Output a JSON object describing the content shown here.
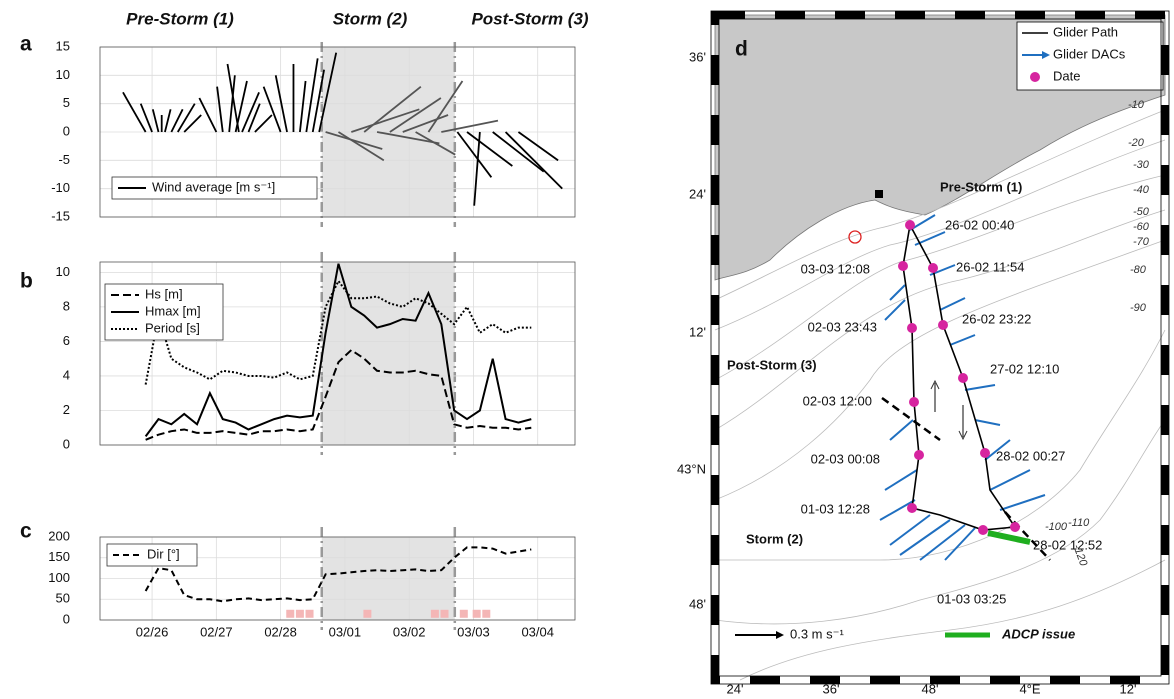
{
  "chart_data": [
    {
      "type": "stick",
      "panel": "a",
      "phase_titles": [
        "Pre-Storm (1)",
        "Storm (2)",
        "Post-Storm (3)"
      ],
      "x": [
        25.9,
        26.0,
        26.1,
        26.15,
        26.2,
        26.3,
        26.4,
        26.5,
        27.0,
        27.1,
        27.2,
        27.3,
        27.35,
        27.4,
        27.5,
        27.6,
        28.0,
        28.1,
        28.2,
        28.3,
        28.4,
        28.5,
        28.6,
        28.7,
        28.9,
        29.1,
        29.3,
        29.5,
        29.7,
        29.9,
        30.1,
        30.3,
        30.5,
        30.75,
        30.9,
        31.1,
        31.3,
        31.5,
        31.7
      ],
      "series": [
        {
          "name": "Wind average [m s⁻¹]",
          "color": "#000000",
          "u": [
            -4,
            -2,
            -1,
            0,
            1,
            2,
            3,
            3,
            -3,
            -1,
            1,
            2,
            -2,
            3,
            2,
            3,
            -3,
            -2,
            0,
            1,
            2,
            2,
            3,
            10,
            8,
            12,
            10,
            11,
            9,
            8,
            7,
            6,
            10,
            6,
            8,
            -1,
            9,
            10,
            7
          ],
          "v": [
            7,
            5,
            4,
            3,
            4,
            4,
            5,
            3,
            6,
            8,
            10,
            9,
            12,
            7,
            5,
            3,
            8,
            10,
            12,
            9,
            13,
            11,
            14,
            -3,
            -5,
            4,
            8,
            -2,
            6,
            3,
            -4,
            9,
            2,
            -8,
            -6,
            -13,
            -7,
            -10,
            -5
          ]
        }
      ],
      "storm_color": "#555555",
      "shade": [
        28.64,
        30.71
      ],
      "xlim": [
        25.19,
        32.58
      ],
      "xticks": [
        26,
        27,
        28,
        29,
        30,
        31,
        32
      ],
      "ylim": [
        -15,
        15
      ],
      "yticks": [
        -15,
        -10,
        -5,
        0,
        5,
        10,
        15
      ],
      "grid": true,
      "legend": "lower left"
    },
    {
      "type": "line",
      "panel": "b",
      "x": [
        25.9,
        26.1,
        26.3,
        26.5,
        26.7,
        26.9,
        27.1,
        27.3,
        27.5,
        27.7,
        27.9,
        28.1,
        28.3,
        28.5,
        28.7,
        28.9,
        29.1,
        29.3,
        29.5,
        29.7,
        29.9,
        30.1,
        30.3,
        30.5,
        30.7,
        30.9,
        31.1,
        31.3,
        31.5,
        31.7,
        31.9
      ],
      "series": [
        {
          "name": "Hs [m]",
          "color": "#000000",
          "dash": "8 4",
          "values": [
            0.3,
            0.6,
            0.8,
            0.9,
            0.7,
            0.7,
            0.8,
            0.7,
            0.6,
            0.8,
            0.8,
            0.9,
            0.8,
            0.9,
            2.8,
            4.8,
            5.5,
            5.0,
            4.3,
            4.2,
            4.2,
            4.3,
            4.1,
            4.0,
            1.2,
            1.0,
            1.1,
            1.0,
            1.0,
            0.9,
            1.0
          ]
        },
        {
          "name": "Hmax [m]",
          "color": "#000000",
          "dash": "none",
          "values": [
            0.5,
            1.5,
            1.2,
            1.8,
            1.2,
            3.0,
            1.5,
            1.3,
            0.9,
            1.2,
            1.5,
            1.7,
            1.6,
            1.7,
            6.5,
            10.5,
            8.0,
            7.5,
            6.8,
            7.0,
            7.3,
            7.2,
            8.8,
            7.0,
            2.0,
            1.5,
            2.0,
            5.0,
            1.5,
            1.3,
            1.5
          ]
        },
        {
          "name": "Period [s]",
          "color": "#000000",
          "dash": "2 2",
          "values": [
            3.5,
            7.5,
            5.0,
            4.5,
            4.2,
            3.8,
            4.3,
            4.2,
            4.0,
            4.0,
            3.9,
            4.2,
            3.8,
            4.0,
            8.0,
            9.5,
            8.5,
            8.5,
            8.6,
            8.2,
            8.0,
            8.5,
            8.2,
            7.6,
            7.0,
            8.0,
            6.5,
            7.0,
            6.5,
            6.8,
            6.8
          ]
        }
      ],
      "shade": [
        28.64,
        30.71
      ],
      "xlim": [
        25.19,
        32.58
      ],
      "xticks": [
        26,
        27,
        28,
        29,
        30,
        31,
        32
      ],
      "ylim": [
        0,
        10.6
      ],
      "yticks": [
        0,
        2,
        4,
        6,
        8,
        10
      ],
      "grid": true,
      "legend": "upper left"
    },
    {
      "type": "line",
      "panel": "c",
      "x": [
        25.9,
        26.1,
        26.3,
        26.5,
        26.7,
        26.9,
        27.1,
        27.3,
        27.5,
        27.7,
        27.9,
        28.1,
        28.3,
        28.5,
        28.7,
        28.9,
        29.1,
        29.3,
        29.5,
        29.7,
        29.9,
        30.1,
        30.3,
        30.5,
        30.7,
        30.9,
        31.1,
        31.3,
        31.5,
        31.7,
        31.9
      ],
      "series": [
        {
          "name": "Dir [°]",
          "color": "#000000",
          "dash": "6 4",
          "values": [
            70,
            125,
            120,
            60,
            50,
            50,
            45,
            50,
            52,
            48,
            50,
            52,
            48,
            50,
            110,
            112,
            115,
            118,
            120,
            118,
            120,
            122,
            118,
            120,
            150,
            175,
            175,
            172,
            160,
            165,
            170
          ]
        }
      ],
      "markers": {
        "color": "#f4b6b6",
        "x": [
          28.15,
          28.3,
          28.45,
          29.35,
          30.4,
          30.55,
          30.85,
          31.05,
          31.2
        ],
        "y": [
          15,
          15,
          15,
          15,
          15,
          15,
          15,
          15,
          15
        ]
      },
      "shade": [
        28.64,
        30.71
      ],
      "xlim": [
        25.19,
        32.58
      ],
      "xticks": [
        {
          "value": 26,
          "label": "02/26"
        },
        {
          "value": 27,
          "label": "02/27"
        },
        {
          "value": 28,
          "label": "02/28"
        },
        {
          "value": 29,
          "label": "03/01"
        },
        {
          "value": 30,
          "label": "03/02"
        },
        {
          "value": 31,
          "label": "03/03"
        },
        {
          "value": 32,
          "label": "03/04"
        }
      ],
      "ylim": [
        0,
        200
      ],
      "yticks": [
        0,
        50,
        100,
        150,
        200
      ],
      "grid": true,
      "legend": "upper left"
    }
  ],
  "map": {
    "panel": "d",
    "legend": [
      "Glider Path",
      "Glider DACs",
      "Date"
    ],
    "regions": [
      "Pre-Storm (1)",
      "Post-Storm (3)",
      "Storm (2)"
    ],
    "dates": [
      "26-02 00:40",
      "26-02 11:54",
      "26-02 23:22",
      "27-02 12:10",
      "28-02 00:27",
      "28-02 12:52",
      "01-03 03:25",
      "01-03 12:28",
      "02-03 00:08",
      "02-03 12:00",
      "02-03 23:43",
      "03-03 12:08"
    ],
    "depth_labels": [
      "-10",
      "-20",
      "-30",
      "-40",
      "-50",
      "-60",
      "-70",
      "-80",
      "-90",
      "-100",
      "-110",
      "-120"
    ],
    "lat_ticks": [
      "36'",
      "24'",
      "12'",
      "43°N",
      "48'"
    ],
    "lon_ticks": [
      "24'",
      "36'",
      "48'",
      "4°E",
      "12'"
    ],
    "scale_label": "0.3 m s⁻¹",
    "adcp_label": "ADCP issue"
  }
}
